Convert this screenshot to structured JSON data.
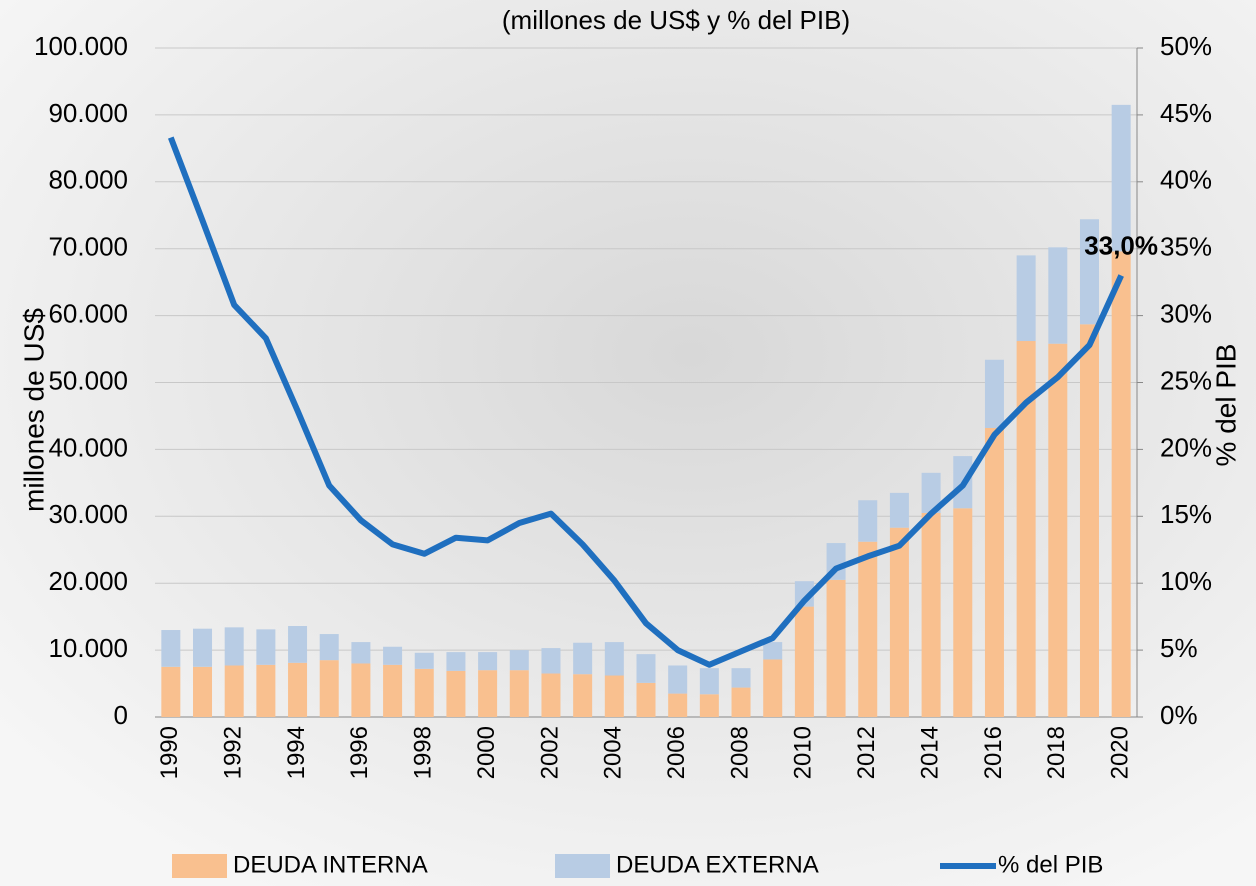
{
  "chart_data": {
    "type": "bar_line",
    "subtitle": "(millones de US$ y % del PIB)",
    "y_label": "millones de US$",
    "y2_label": "% del PIB",
    "categories": [
      "1990",
      null,
      "1992",
      null,
      "1994",
      null,
      "1996",
      null,
      "1998",
      null,
      "2000",
      null,
      "2002",
      null,
      "2004",
      null,
      "2006",
      null,
      "2008",
      null,
      "2010",
      null,
      "2012",
      null,
      "2014",
      null,
      "2016",
      null,
      "2018",
      null,
      "2020"
    ],
    "series": [
      {
        "name": "DEUDA INTERNA",
        "color": "#f9c08f",
        "stack": true,
        "values": [
          7.5,
          7.5,
          7.7,
          7.8,
          8.1,
          8.5,
          8.0,
          7.8,
          7.2,
          6.9,
          7.0,
          7.0,
          6.5,
          6.4,
          6.2,
          5.1,
          3.5,
          3.4,
          4.4,
          8.6,
          16.5,
          20.5,
          26.2,
          28.3,
          30.5,
          31.2,
          43.2,
          56.2,
          55.8,
          58.7,
          69.6
        ]
      },
      {
        "name": "DEUDA EXTERNA",
        "color": "#b8cce4",
        "stack": true,
        "values": [
          5.5,
          5.7,
          5.7,
          5.3,
          5.5,
          3.9,
          3.2,
          2.7,
          2.4,
          2.8,
          2.7,
          3.0,
          3.8,
          4.7,
          5.0,
          4.3,
          4.2,
          3.9,
          2.9,
          2.6,
          3.8,
          5.5,
          6.2,
          5.2,
          6.0,
          7.8,
          10.2,
          12.8,
          14.4,
          15.7,
          21.9
        ]
      },
      {
        "name": "% del PIB",
        "color": "#1f6fbf",
        "axis": "y2",
        "kind": "line",
        "values": [
          43.3,
          37.1,
          30.8,
          28.3,
          22.9,
          17.3,
          14.7,
          12.9,
          12.2,
          13.4,
          13.2,
          14.5,
          15.2,
          12.9,
          10.2,
          7.0,
          5.0,
          3.9,
          4.9,
          5.9,
          8.7,
          11.1,
          12.0,
          12.8,
          15.2,
          17.3,
          21.1,
          23.5,
          25.4,
          27.8,
          33.0
        ],
        "value_labels": [
          null,
          null,
          null,
          null,
          null,
          null,
          null,
          null,
          null,
          null,
          null,
          null,
          null,
          null,
          null,
          null,
          null,
          null,
          null,
          null,
          null,
          null,
          null,
          null,
          null,
          null,
          null,
          null,
          null,
          null,
          "33,0%"
        ]
      }
    ],
    "ylim": [
      0,
      100
    ],
    "yticks": [
      0,
      {
        "value": 10,
        "label": "10.000"
      },
      {
        "value": 20,
        "label": "20.000"
      },
      {
        "value": 30,
        "label": "30.000"
      },
      {
        "value": 40,
        "label": "40.000"
      },
      {
        "value": 50,
        "label": "50.000"
      },
      {
        "value": 60,
        "label": "60.000"
      },
      {
        "value": 70,
        "label": "70.000"
      },
      {
        "value": 80,
        "label": "80.000"
      },
      {
        "value": 90,
        "label": "90.000"
      },
      {
        "value": 100,
        "label": "100.000"
      }
    ],
    "y2lim": [
      0,
      50
    ],
    "y2ticks": [
      {
        "value": 0,
        "label": "0%"
      },
      {
        "value": 5,
        "label": "5%"
      },
      {
        "value": 10,
        "label": "10%"
      },
      {
        "value": 15,
        "label": "15%"
      },
      {
        "value": 20,
        "label": "20%"
      },
      {
        "value": 25,
        "label": "25%"
      },
      {
        "value": 30,
        "label": "30%"
      },
      {
        "value": 35,
        "label": "35%"
      },
      {
        "value": 40,
        "label": "40%"
      },
      {
        "value": 45,
        "label": "45%"
      },
      {
        "value": 50,
        "label": "50%"
      }
    ],
    "grid": true,
    "legend": "bottom"
  }
}
